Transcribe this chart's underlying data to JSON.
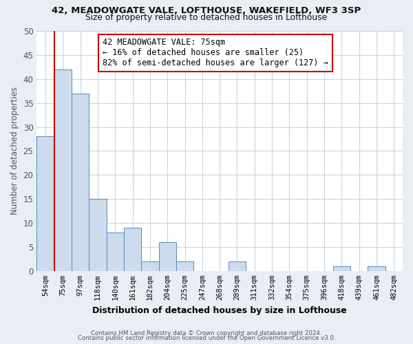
{
  "title1": "42, MEADOWGATE VALE, LOFTHOUSE, WAKEFIELD, WF3 3SP",
  "title2": "Size of property relative to detached houses in Lofthouse",
  "xlabel": "Distribution of detached houses by size in Lofthouse",
  "ylabel": "Number of detached properties",
  "bar_labels": [
    "54sqm",
    "75sqm",
    "97sqm",
    "118sqm",
    "140sqm",
    "161sqm",
    "182sqm",
    "204sqm",
    "225sqm",
    "247sqm",
    "268sqm",
    "289sqm",
    "311sqm",
    "332sqm",
    "354sqm",
    "375sqm",
    "396sqm",
    "418sqm",
    "439sqm",
    "461sqm",
    "482sqm"
  ],
  "bar_values": [
    28,
    42,
    37,
    15,
    8,
    9,
    2,
    6,
    2,
    0,
    0,
    2,
    0,
    0,
    0,
    0,
    0,
    1,
    0,
    1,
    0
  ],
  "highlight_index": 1,
  "bar_color": "#ccdcec",
  "bar_edge_color": "#5588bb",
  "highlight_edge_color": "#cc0000",
  "annotation_title": "42 MEADOWGATE VALE: 75sqm",
  "annotation_line1": "← 16% of detached houses are smaller (25)",
  "annotation_line2": "82% of semi-detached houses are larger (127) →",
  "annotation_box_edge": "#cc0000",
  "ylim": [
    0,
    50
  ],
  "yticks": [
    0,
    5,
    10,
    15,
    20,
    25,
    30,
    35,
    40,
    45,
    50
  ],
  "footer1": "Contains HM Land Registry data © Crown copyright and database right 2024.",
  "footer2": "Contains public sector information licensed under the Open Government Licence v3.0.",
  "bg_color": "#e8eef4",
  "plot_bg_color": "#ffffff",
  "grid_color": "#c8d4e0"
}
